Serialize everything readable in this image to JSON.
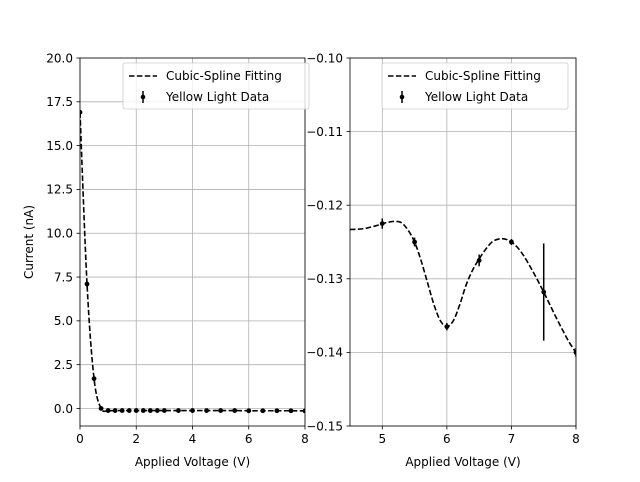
{
  "chart_data": [
    {
      "type": "line",
      "xlabel": "Applied Voltage (V)",
      "ylabel": "Current (nA)",
      "xlim": [
        0,
        8
      ],
      "ylim": [
        -1,
        20
      ],
      "xticks": [
        0,
        2,
        4,
        6,
        8
      ],
      "yticks": [
        0.0,
        2.5,
        5.0,
        7.5,
        10.0,
        12.5,
        15.0,
        17.5,
        20.0
      ],
      "xtick_labels": [
        "0",
        "2",
        "4",
        "6",
        "8"
      ],
      "ytick_labels": [
        "0.0",
        "2.5",
        "5.0",
        "7.5",
        "10.0",
        "12.5",
        "15.0",
        "17.5",
        "20.0"
      ],
      "grid": true,
      "legend_position": "top-right",
      "series": [
        {
          "name": "Cubic-Spline Fitting",
          "style": "dashed",
          "color": "#000000",
          "x": [
            0,
            0.25,
            0.5,
            0.75,
            1.0,
            1.25,
            1.5,
            1.75,
            2.0,
            2.25,
            2.5,
            2.75,
            3.0,
            3.5,
            4.0,
            4.5,
            5.0,
            5.5,
            6.0,
            6.5,
            7.0,
            7.5,
            8.0
          ],
          "y": [
            16.9,
            7.1,
            1.7,
            0.0,
            -0.12,
            -0.12,
            -0.12,
            -0.12,
            -0.12,
            -0.12,
            -0.12,
            -0.12,
            -0.12,
            -0.12,
            -0.12,
            -0.12,
            -0.12,
            -0.12,
            -0.13,
            -0.13,
            -0.13,
            -0.13,
            -0.14
          ]
        },
        {
          "name": "Yellow Light Data",
          "style": "errorbar-points",
          "color": "#000000",
          "x": [
            0,
            0.25,
            0.5,
            0.75,
            1.0,
            1.25,
            1.5,
            1.75,
            2.0,
            2.25,
            2.5,
            2.75,
            3.0,
            3.5,
            4.0,
            4.5,
            5.0,
            5.5,
            6.0,
            6.5,
            7.0,
            7.5,
            8.0
          ],
          "y": [
            16.9,
            7.1,
            1.7,
            0.0,
            -0.12,
            -0.12,
            -0.12,
            -0.12,
            -0.12,
            -0.12,
            -0.12,
            -0.12,
            -0.12,
            -0.12,
            -0.12,
            -0.12,
            -0.12,
            -0.12,
            -0.13,
            -0.13,
            -0.13,
            -0.13,
            -0.14
          ]
        }
      ]
    },
    {
      "type": "line",
      "xlabel": "Applied Voltage (V)",
      "ylabel": "",
      "xlim": [
        4.5,
        8
      ],
      "ylim": [
        -0.15,
        -0.1
      ],
      "xticks": [
        5,
        6,
        7,
        8
      ],
      "yticks": [
        -0.15,
        -0.14,
        -0.13,
        -0.12,
        -0.11,
        -0.1
      ],
      "xtick_labels": [
        "5",
        "6",
        "7",
        "8"
      ],
      "ytick_labels": [
        "−0.15",
        "−0.14",
        "−0.13",
        "−0.12",
        "−0.11",
        "−0.10"
      ],
      "grid": true,
      "legend_position": "top-right",
      "series": [
        {
          "name": "Cubic-Spline Fitting",
          "style": "dashed",
          "color": "#000000",
          "x": [
            4.5,
            4.7,
            4.9,
            5.0,
            5.1,
            5.2,
            5.3,
            5.4,
            5.5,
            5.6,
            5.7,
            5.8,
            5.9,
            6.0,
            6.1,
            6.2,
            6.3,
            6.4,
            6.5,
            6.6,
            6.7,
            6.8,
            6.9,
            7.0,
            7.1,
            7.2,
            7.3,
            7.4,
            7.5,
            7.6,
            7.7,
            7.8,
            7.9,
            8.0
          ],
          "y": [
            -0.1233,
            -0.1232,
            -0.1228,
            -0.1225,
            -0.1223,
            -0.1222,
            -0.1224,
            -0.1234,
            -0.125,
            -0.1275,
            -0.1305,
            -0.1335,
            -0.1357,
            -0.1365,
            -0.1357,
            -0.1335,
            -0.1308,
            -0.1288,
            -0.1273,
            -0.126,
            -0.125,
            -0.1246,
            -0.1246,
            -0.125,
            -0.1258,
            -0.127,
            -0.1285,
            -0.1301,
            -0.1318,
            -0.1336,
            -0.1354,
            -0.1371,
            -0.1387,
            -0.14
          ]
        },
        {
          "name": "Yellow Light Data",
          "style": "errorbar-points",
          "color": "#000000",
          "x": [
            5.0,
            5.5,
            6.0,
            6.5,
            7.0,
            7.5,
            8.0
          ],
          "y": [
            -0.1225,
            -0.125,
            -0.1365,
            -0.1275,
            -0.125,
            -0.1318,
            -0.14
          ],
          "yerr": [
            0.0007,
            0.0006,
            0.0005,
            0.0008,
            0.0004,
            0.0066,
            0.0006
          ]
        }
      ]
    }
  ]
}
